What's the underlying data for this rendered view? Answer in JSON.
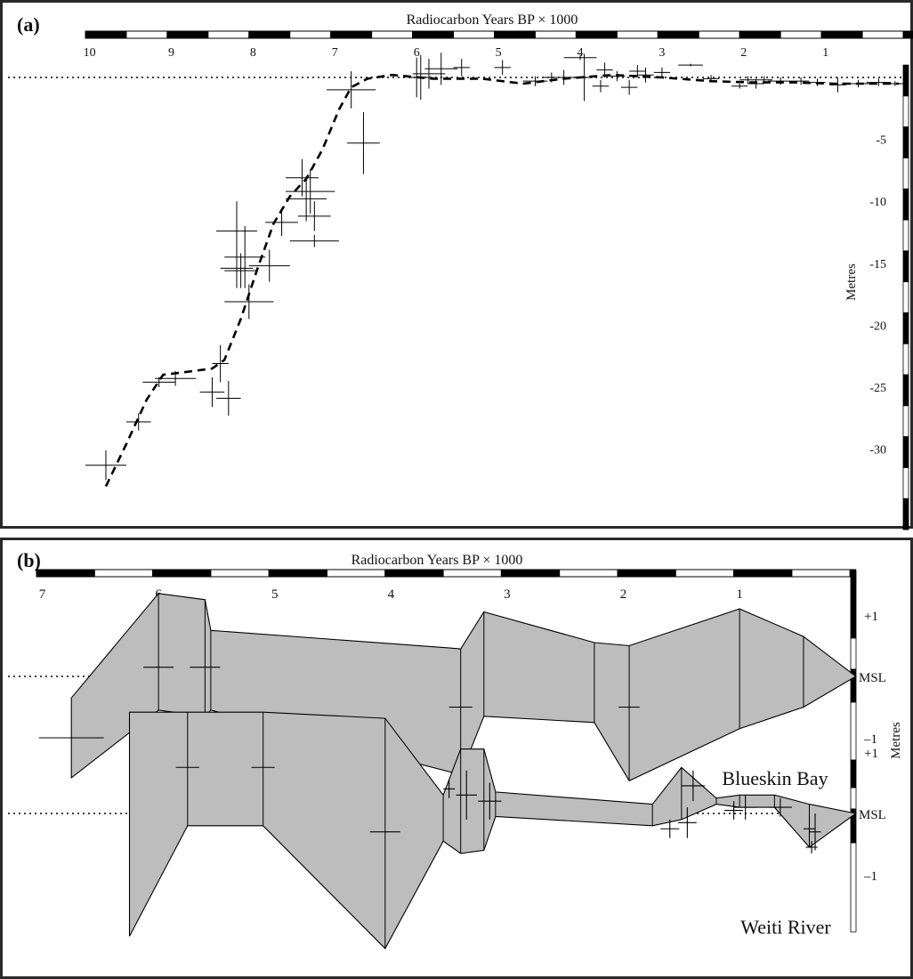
{
  "chart_data": [
    {
      "type": "scatter",
      "panel_label": "(a)",
      "title": "Radiocarbon Years BP × 1000",
      "xlabel": "Radiocarbon Years BP × 1000",
      "ylabel": "Metres",
      "xlim": [
        10.05,
        0
      ],
      "ylim": [
        -35,
        1
      ],
      "xticks": [
        "10",
        "9",
        "8",
        "7",
        "6",
        "5",
        "4",
        "3",
        "2",
        "1"
      ],
      "yticks": [
        "-5",
        "-10",
        "-15",
        "-20",
        "-25",
        "-30"
      ],
      "reference_line_y": 0,
      "series": [
        {
          "kind": "error_crosses",
          "points": [
            {
              "x": 9.8,
              "y": -31.3,
              "ex": 0.25,
              "ey": 1.2
            },
            {
              "x": 9.4,
              "y": -27.8,
              "ex": 0.15,
              "ey": 0.7
            },
            {
              "x": 9.15,
              "y": -24.6,
              "ex": 0.2,
              "ey": 0.4
            },
            {
              "x": 8.95,
              "y": -24.3,
              "ex": 0.25,
              "ey": 0.6
            },
            {
              "x": 8.5,
              "y": -25.4,
              "ex": 0.15,
              "ey": 1.2
            },
            {
              "x": 8.3,
              "y": -25.9,
              "ex": 0.15,
              "ey": 1.4
            },
            {
              "x": 8.4,
              "y": -23.1,
              "ex": 0.1,
              "ey": 1.5
            },
            {
              "x": 8.05,
              "y": -18.1,
              "ex": 0.3,
              "ey": 1.4
            },
            {
              "x": 8.2,
              "y": -15.4,
              "ex": 0.2,
              "ey": 1.6
            },
            {
              "x": 8.15,
              "y": -15.6,
              "ex": 0.2,
              "ey": 1.4
            },
            {
              "x": 8.1,
              "y": -14.5,
              "ex": 0.25,
              "ey": 2.5
            },
            {
              "x": 8.2,
              "y": -12.4,
              "ex": 0.25,
              "ey": 2.4
            },
            {
              "x": 7.8,
              "y": -15.2,
              "ex": 0.25,
              "ey": 1.3
            },
            {
              "x": 7.65,
              "y": -11.7,
              "ex": 0.2,
              "ey": 1.1
            },
            {
              "x": 7.35,
              "y": -9.8,
              "ex": 0.25,
              "ey": 1.8
            },
            {
              "x": 7.3,
              "y": -9.2,
              "ex": 0.3,
              "ey": 1.8
            },
            {
              "x": 7.25,
              "y": -11.2,
              "ex": 0.2,
              "ey": 1.2
            },
            {
              "x": 7.25,
              "y": -13.2,
              "ex": 0.3,
              "ey": 0.5
            },
            {
              "x": 7.4,
              "y": -8.1,
              "ex": 0.2,
              "ey": 1.5
            },
            {
              "x": 6.8,
              "y": -1.0,
              "ex": 0.3,
              "ey": 1.5
            },
            {
              "x": 6.65,
              "y": -5.3,
              "ex": 0.2,
              "ey": 2.5
            },
            {
              "x": 6.0,
              "y": 0.0,
              "ex": 0.1,
              "ey": 1.6
            },
            {
              "x": 5.95,
              "y": 0.0,
              "ex": 0.15,
              "ey": 1.8
            },
            {
              "x": 5.85,
              "y": 0.3,
              "ex": 0.2,
              "ey": 1.2
            },
            {
              "x": 5.7,
              "y": 0.7,
              "ex": 0.2,
              "ey": 1.3
            },
            {
              "x": 5.45,
              "y": 0.8,
              "ex": 0.1,
              "ey": 0.7
            },
            {
              "x": 4.95,
              "y": 0.8,
              "ex": 0.1,
              "ey": 0.6
            },
            {
              "x": 4.55,
              "y": -0.3,
              "ex": 0.15,
              "ey": 0.4
            },
            {
              "x": 4.35,
              "y": 0.0,
              "ex": 0.1,
              "ey": 0.4
            },
            {
              "x": 4.2,
              "y": 0.0,
              "ex": 0.15,
              "ey": 0.6
            },
            {
              "x": 4.0,
              "y": 1.6,
              "ex": 0.2,
              "ey": 0.2
            },
            {
              "x": 3.95,
              "y": 0.0,
              "ex": 0.1,
              "ey": 1.9
            },
            {
              "x": 3.75,
              "y": -0.7,
              "ex": 0.1,
              "ey": 0.5
            },
            {
              "x": 3.7,
              "y": 0.6,
              "ex": 0.1,
              "ey": 0.6
            },
            {
              "x": 3.55,
              "y": 0.1,
              "ex": 0.1,
              "ey": 0.4
            },
            {
              "x": 3.4,
              "y": -0.8,
              "ex": 0.1,
              "ey": 0.6
            },
            {
              "x": 3.3,
              "y": 0.5,
              "ex": 0.1,
              "ey": 0.5
            },
            {
              "x": 3.2,
              "y": 0.2,
              "ex": 0.1,
              "ey": 0.6
            },
            {
              "x": 3.0,
              "y": 0.4,
              "ex": 0.1,
              "ey": 0.4
            },
            {
              "x": 2.65,
              "y": 1.0,
              "ex": 0.15,
              "ey": 0.1
            },
            {
              "x": 2.4,
              "y": -0.1,
              "ex": 0.1,
              "ey": 0.3
            },
            {
              "x": 2.05,
              "y": -0.7,
              "ex": 0.1,
              "ey": 0.2
            },
            {
              "x": 1.95,
              "y": -0.2,
              "ex": 0.1,
              "ey": 0.3
            },
            {
              "x": 1.85,
              "y": -0.5,
              "ex": 0.1,
              "ey": 0.4
            },
            {
              "x": 1.75,
              "y": -0.2,
              "ex": 0.1,
              "ey": 0.3
            },
            {
              "x": 1.55,
              "y": -0.3,
              "ex": 0.15,
              "ey": 0.3
            },
            {
              "x": 1.3,
              "y": -0.3,
              "ex": 0.1,
              "ey": 0.3
            },
            {
              "x": 1.1,
              "y": -0.4,
              "ex": 0.1,
              "ey": 0.3
            },
            {
              "x": 0.85,
              "y": -0.6,
              "ex": 0.1,
              "ey": 0.6
            },
            {
              "x": 0.6,
              "y": -0.5,
              "ex": 0.2,
              "ey": 0.3
            },
            {
              "x": 0.35,
              "y": -0.4,
              "ex": 0.15,
              "ey": 0.3
            },
            {
              "x": 0.15,
              "y": -0.5,
              "ex": 0.1,
              "ey": 0.2
            }
          ]
        },
        {
          "kind": "curve",
          "style": "dashed",
          "x": [
            9.8,
            9.55,
            9.3,
            9.1,
            8.85,
            8.5,
            8.35,
            8.15,
            7.95,
            7.75,
            7.55,
            7.35,
            7.15,
            6.95,
            6.8,
            6.6,
            6.3,
            5.8,
            5.2,
            4.7,
            4.2,
            3.6,
            3.0,
            2.4,
            1.9,
            1.4,
            0.9,
            0.4,
            0.1
          ],
          "y": [
            -33.0,
            -29.6,
            -26.0,
            -24.0,
            -23.8,
            -23.5,
            -22.8,
            -19.5,
            -15.5,
            -11.8,
            -9.6,
            -8.2,
            -5.8,
            -2.6,
            -0.8,
            -0.1,
            0.2,
            -0.1,
            -0.1,
            -0.5,
            -0.1,
            0.2,
            0.0,
            -0.3,
            -0.4,
            -0.4,
            -0.5,
            -0.5,
            -0.5
          ]
        }
      ]
    },
    {
      "type": "area",
      "panel_label": "(b)",
      "title": "Radiocarbon Years BP × 1000",
      "xlabel": "Radiocarbon Years BP × 1000",
      "ylabel": "Metres",
      "xlim": [
        7.05,
        -0.05
      ],
      "xticks": [
        "7",
        "6",
        "5",
        "4",
        "3",
        "2",
        "1"
      ],
      "yticks": [
        "+1",
        "MSL",
        "–1"
      ],
      "series": [
        {
          "name": "Blueskin Bay",
          "envelope_x": [
            6.75,
            6.0,
            5.6,
            5.55,
            3.4,
            3.2,
            2.25,
            1.95,
            1.0,
            0.45,
            0.0
          ],
          "upper": [
            -0.35,
            1.35,
            1.25,
            0.75,
            0.45,
            1.05,
            0.55,
            0.5,
            1.1,
            0.65,
            0.0
          ],
          "lower": [
            -1.65,
            -0.55,
            -0.65,
            -0.55,
            -1.6,
            -0.65,
            -0.75,
            -1.7,
            -0.85,
            -0.5,
            0.0
          ],
          "crosses": [
            {
              "x": 6.0,
              "y": 0.15,
              "ex": 0.13,
              "ey": 0.0
            },
            {
              "x": 5.6,
              "y": 0.15,
              "ex": 0.13,
              "ey": 0.0
            },
            {
              "x": 3.4,
              "y": -0.5,
              "ex": 0.1,
              "ey": 0.0
            },
            {
              "x": 1.95,
              "y": -0.5,
              "ex": 0.09,
              "ey": 0.0
            },
            {
              "x": 6.75,
              "y": -1.0,
              "ex": 0.28,
              "ey": 0.0
            }
          ]
        },
        {
          "name": "Weiti River",
          "envelope_x": [
            6.25,
            5.75,
            5.1,
            4.05,
            3.55,
            3.4,
            3.2,
            3.1,
            1.75,
            1.5,
            1.2,
            1.0,
            0.7,
            0.4,
            0.0
          ],
          "upper": [
            1.65,
            1.65,
            1.65,
            1.55,
            0.3,
            1.05,
            1.05,
            0.35,
            0.15,
            0.75,
            0.25,
            0.3,
            0.3,
            0.15,
            0.0
          ],
          "lower": [
            -2.0,
            -0.2,
            -0.2,
            -2.2,
            -0.45,
            -0.65,
            -0.6,
            -0.05,
            -0.2,
            -0.1,
            0.15,
            0.1,
            0.1,
            -0.55,
            0.0
          ],
          "crosses": [
            {
              "x": 5.75,
              "y": 0.75,
              "ex": 0.1,
              "ey": 0.0
            },
            {
              "x": 5.1,
              "y": 0.75,
              "ex": 0.1,
              "ey": 0.0
            },
            {
              "x": 4.05,
              "y": -0.3,
              "ex": 0.13,
              "ey": 0.0
            },
            {
              "x": 3.5,
              "y": 0.4,
              "ex": 0.05,
              "ey": 0.15
            },
            {
              "x": 3.35,
              "y": 0.3,
              "ex": 0.09,
              "ey": 0.4
            },
            {
              "x": 3.15,
              "y": 0.2,
              "ex": 0.1,
              "ey": 0.3
            },
            {
              "x": 1.6,
              "y": -0.25,
              "ex": 0.08,
              "ey": 0.15
            },
            {
              "x": 1.45,
              "y": -0.15,
              "ex": 0.08,
              "ey": 0.25
            },
            {
              "x": 1.4,
              "y": 0.45,
              "ex": 0.1,
              "ey": 0.25
            },
            {
              "x": 1.05,
              "y": 0.05,
              "ex": 0.08,
              "ey": 0.15
            },
            {
              "x": 0.95,
              "y": 0.1,
              "ex": 0.1,
              "ey": 0.2
            },
            {
              "x": 0.65,
              "y": 0.1,
              "ex": 0.1,
              "ey": 0.15
            },
            {
              "x": 0.4,
              "y": -0.25,
              "ex": 0.05,
              "ey": 0.2
            },
            {
              "x": 0.35,
              "y": -0.3,
              "ex": 0.05,
              "ey": 0.3
            },
            {
              "x": 0.38,
              "y": -0.55,
              "ex": 0.05,
              "ey": 0.1
            }
          ]
        }
      ]
    }
  ]
}
